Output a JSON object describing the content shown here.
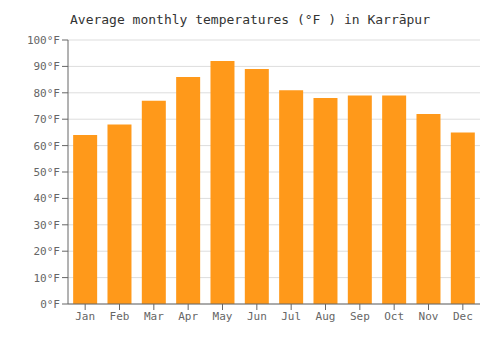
{
  "chart_data": {
    "type": "bar",
    "title": "Average monthly temperatures (°F ) in Karrāpur",
    "categories": [
      "Jan",
      "Feb",
      "Mar",
      "Apr",
      "May",
      "Jun",
      "Jul",
      "Aug",
      "Sep",
      "Oct",
      "Nov",
      "Dec"
    ],
    "values": [
      64,
      68,
      77,
      86,
      92,
      89,
      81,
      78,
      79,
      79,
      72,
      65
    ],
    "color": "#ff991a",
    "ylim": [
      0,
      100
    ],
    "yticks": [
      {
        "value": 0,
        "label": "0°F"
      },
      {
        "value": 10,
        "label": "10°F"
      },
      {
        "value": 20,
        "label": "20°F"
      },
      {
        "value": 30,
        "label": "30°F"
      },
      {
        "value": 40,
        "label": "40°F"
      },
      {
        "value": 50,
        "label": "50°F"
      },
      {
        "value": 60,
        "label": "60°F"
      },
      {
        "value": 70,
        "label": "70°F"
      },
      {
        "value": 80,
        "label": "80°F"
      },
      {
        "value": 90,
        "label": "90°F"
      },
      {
        "value": 100,
        "label": "100°F"
      }
    ],
    "grid": true
  }
}
